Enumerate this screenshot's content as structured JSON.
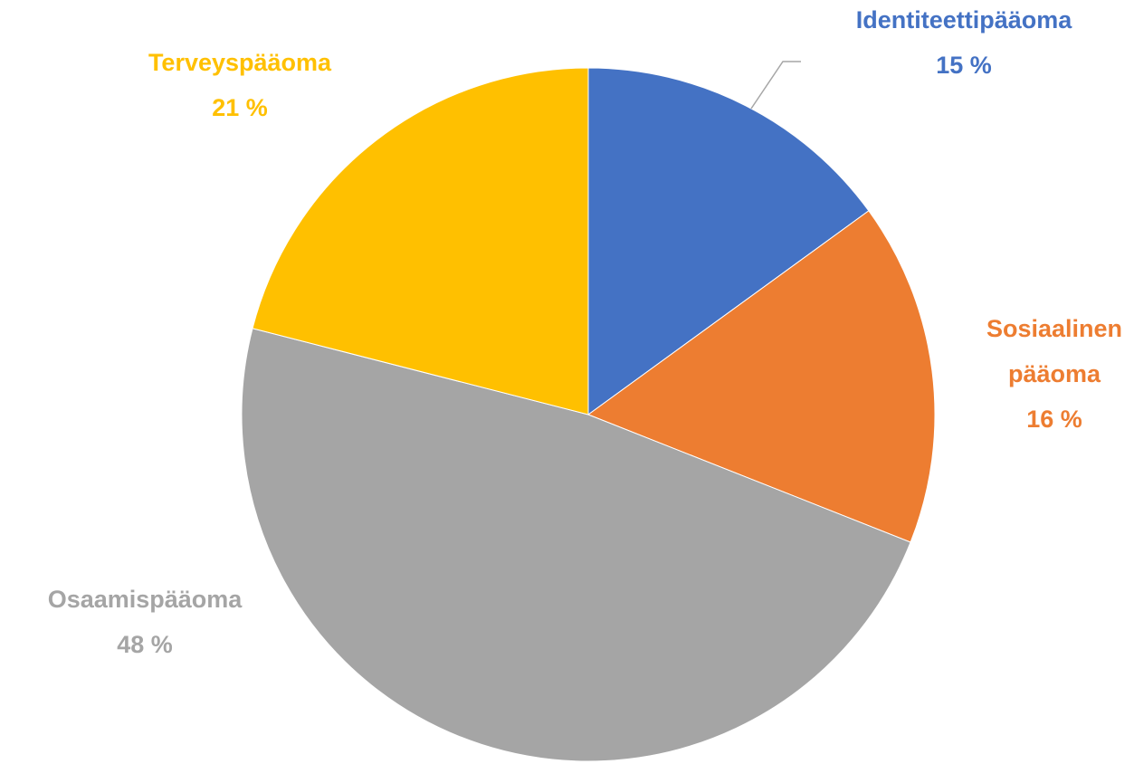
{
  "chart_data": {
    "type": "pie",
    "categories": [
      "Identiteettipääoma",
      "Sosiaalinen pääoma",
      "Osaamispääoma",
      "Terveyspääoma"
    ],
    "values": [
      15,
      16,
      48,
      21
    ],
    "value_labels": [
      "15 %",
      "16 %",
      "48 %",
      "21 %"
    ],
    "colors": [
      "#4472c4",
      "#ed7d31",
      "#a5a5a5",
      "#ffc000"
    ]
  }
}
